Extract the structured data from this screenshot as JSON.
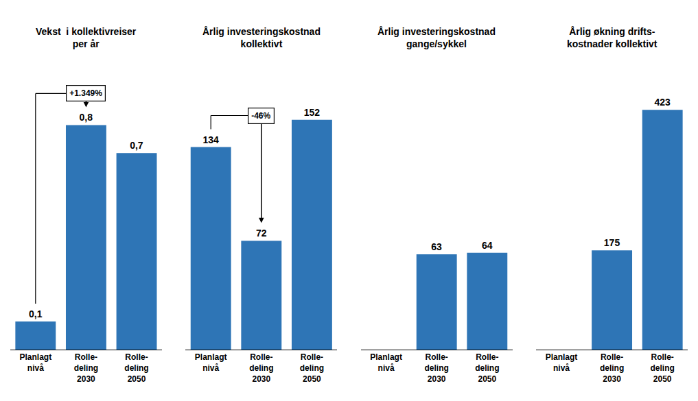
{
  "chart_data": [
    {
      "type": "bar",
      "title": "Vekst  i kollektivreiser\nper år",
      "categories": [
        "Planlagt\nnivå",
        "Rolle-\ndeling\n2030",
        "Rolle-\ndeling\n2050"
      ],
      "values": [
        0.1,
        0.8,
        0.7
      ],
      "value_labels": [
        "0,1",
        "0,8",
        "0,7"
      ],
      "color": "#2e75b6",
      "ylim": [
        0,
        1.05
      ],
      "tick_labels": "x",
      "grid": false,
      "data_labels": true,
      "annotation": "+1.349%"
    },
    {
      "type": "bar",
      "title": "Årlig investeringskostnad\nkollektivt",
      "categories": [
        "Planlagt\nnivå",
        "Rolle-\ndeling\n2030",
        "Rolle-\ndeling\n2050"
      ],
      "values": [
        134,
        72,
        152
      ],
      "color": "#2e75b6",
      "ylim": [
        0,
        195
      ],
      "tick_labels": "x",
      "grid": false,
      "data_labels": true,
      "annotation": "-46%"
    },
    {
      "type": "bar",
      "title": "Årlig investeringskostnad\ngange/sykkel",
      "categories": [
        "Planlagt\nnivå",
        "Rolle-\ndeling\n2030",
        "Rolle-\ndeling\n2050"
      ],
      "values": [
        null,
        63,
        64
      ],
      "color": "#2e75b6",
      "ylim": [
        0,
        195
      ],
      "tick_labels": "x",
      "grid": false,
      "data_labels": true
    },
    {
      "type": "bar",
      "title": "Årlig økning drifts-\nkostnader kollektivt",
      "categories": [
        "Planlagt\nnivå",
        "Rolle-\ndeling\n2030",
        "Rolle-\ndeling\n2050"
      ],
      "values": [
        null,
        175,
        423
      ],
      "color": "#2e75b6",
      "ylim": [
        0,
        520
      ],
      "tick_labels": "x",
      "grid": false,
      "data_labels": true
    }
  ]
}
